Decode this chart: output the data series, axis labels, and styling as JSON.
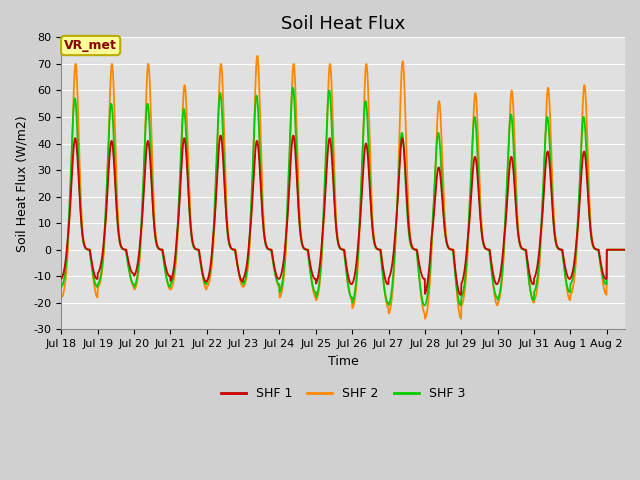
{
  "title": "Soil Heat Flux",
  "ylabel": "Soil Heat Flux (W/m2)",
  "xlabel": "Time",
  "ylim": [
    -30,
    80
  ],
  "yticks": [
    -30,
    -20,
    -10,
    0,
    10,
    20,
    30,
    40,
    50,
    60,
    70,
    80
  ],
  "xtick_labels": [
    "Jul 18",
    "Jul 19",
    "Jul 20",
    "Jul 21",
    "Jul 22",
    "Jul 23",
    "Jul 24",
    "Jul 25",
    "Jul 26",
    "Jul 27",
    "Jul 28",
    "Jul 29",
    "Jul 30",
    "Jul 31",
    "Aug 1",
    "Aug 2"
  ],
  "n_ticks": 16,
  "annotation_text": "VR_met",
  "annotation_box_color": "#FFFF99",
  "annotation_border_color": "#BBAA00",
  "annotation_text_color": "#880000",
  "line_colors": [
    "#CC0000",
    "#FF8800",
    "#00CC00"
  ],
  "line_labels": [
    "SHF 1",
    "SHF 2",
    "SHF 3"
  ],
  "bg_color": "#E0E0E0",
  "grid_color": "#FFFFFF",
  "fig_bg_color": "#D0D0D0",
  "title_fontsize": 13,
  "label_fontsize": 9,
  "tick_fontsize": 8,
  "shf1_day_amps": [
    42,
    41,
    41,
    42,
    43,
    41,
    43,
    42,
    40,
    42,
    31,
    35,
    35,
    37,
    37
  ],
  "shf1_troughs": [
    -11,
    -9,
    -10,
    -12,
    -12,
    -11,
    -11,
    -13,
    -13,
    -11,
    -17,
    -13,
    -13,
    -11,
    -11
  ],
  "shf2_day_amps": [
    70,
    70,
    70,
    62,
    70,
    73,
    70,
    70,
    70,
    71,
    56,
    59,
    60,
    61,
    62
  ],
  "shf2_troughs": [
    -18,
    -14,
    -15,
    -15,
    -14,
    -14,
    -18,
    -19,
    -22,
    -24,
    -26,
    -21,
    -20,
    -19,
    -17
  ],
  "shf3_day_amps": [
    57,
    55,
    55,
    53,
    59,
    58,
    61,
    60,
    56,
    44,
    44,
    50,
    51,
    50,
    50
  ],
  "shf3_troughs": [
    -14,
    -13,
    -14,
    -13,
    -12,
    -13,
    -16,
    -18,
    -20,
    -21,
    -21,
    -18,
    -19,
    -16,
    -13
  ],
  "n_days": 15.5,
  "pts_per_day": 144
}
